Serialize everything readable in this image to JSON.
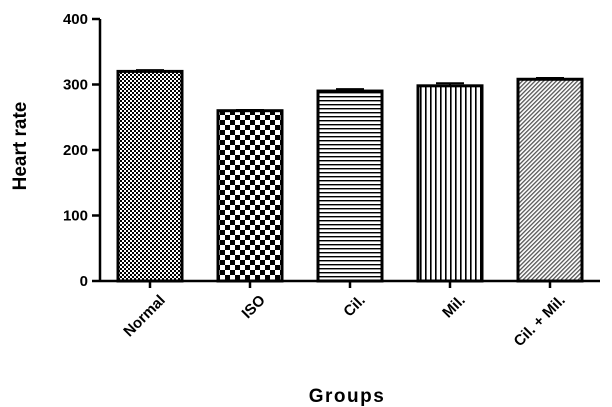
{
  "chart_data": {
    "type": "bar",
    "title": "",
    "xlabel": "Groups",
    "ylabel": "Heart rate",
    "ylim": [
      0,
      400
    ],
    "yticks": [
      0,
      100,
      200,
      300,
      400
    ],
    "ytick_labels": [
      "0",
      "100",
      "200",
      "300",
      "400"
    ],
    "grid": false,
    "legend": "none",
    "categories": [
      "Normal",
      "ISO",
      "Cil.",
      "Mil.",
      "Cil. + Mil."
    ],
    "values": [
      320,
      260,
      290,
      298,
      308
    ],
    "errors": [
      2,
      1,
      3,
      4,
      2
    ],
    "patterns": [
      "checker-fine",
      "checker-large",
      "horizontal-lines",
      "vertical-lines",
      "diagonal-hatch"
    ],
    "bar_stroke": "#000000",
    "bar_fill": "#ffffff"
  }
}
